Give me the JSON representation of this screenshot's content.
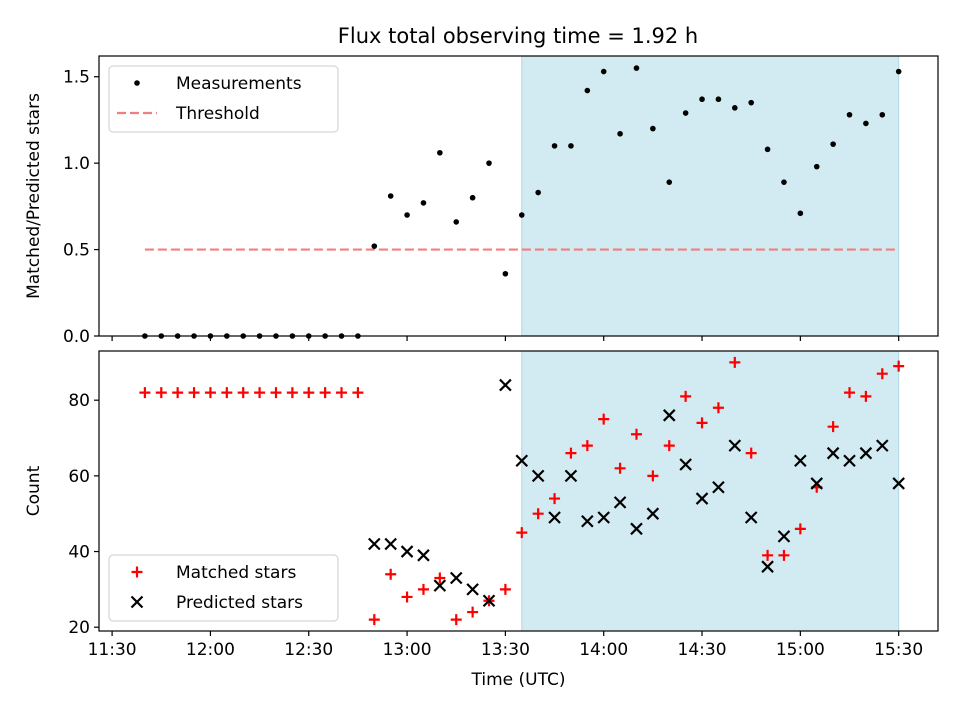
{
  "title": "Flux total observing time = 1.92 h",
  "colors": {
    "measurement": "#000000",
    "threshold": "#f08080",
    "span": "#add8e6",
    "matched": "#ff0000",
    "predicted": "#000000"
  },
  "chart_data": [
    {
      "type": "scatter",
      "ylabel": "Matched/Predicted stars",
      "ylim": [
        0,
        1.62
      ],
      "yticks": [
        0.0,
        0.5,
        1.0,
        1.5
      ],
      "ytick_labels": [
        "0.0",
        "0.5",
        "1.0",
        "1.5"
      ],
      "legend_placement": "upper-left",
      "shaded_span": [
        "13:35",
        "15:30"
      ],
      "threshold": {
        "name": "Threshold",
        "y": 0.5,
        "x_range": [
          "11:40",
          "15:30"
        ],
        "style": "dashed"
      },
      "series": [
        {
          "name": "Measurements",
          "marker": "dot",
          "points": [
            [
              "11:40",
              0
            ],
            [
              "11:45",
              0
            ],
            [
              "11:50",
              0
            ],
            [
              "11:55",
              0
            ],
            [
              "12:00",
              0
            ],
            [
              "12:05",
              0
            ],
            [
              "12:10",
              0
            ],
            [
              "12:15",
              0
            ],
            [
              "12:20",
              0
            ],
            [
              "12:25",
              0
            ],
            [
              "12:30",
              0
            ],
            [
              "12:35",
              0
            ],
            [
              "12:40",
              0
            ],
            [
              "12:45",
              0
            ],
            [
              "12:50",
              0.52
            ],
            [
              "12:55",
              0.81
            ],
            [
              "13:00",
              0.7
            ],
            [
              "13:05",
              0.77
            ],
            [
              "13:10",
              1.06
            ],
            [
              "13:15",
              0.66
            ],
            [
              "13:20",
              0.8
            ],
            [
              "13:25",
              1.0
            ],
            [
              "13:30",
              0.36
            ],
            [
              "13:35",
              0.7
            ],
            [
              "13:40",
              0.83
            ],
            [
              "13:45",
              1.1
            ],
            [
              "13:50",
              1.1
            ],
            [
              "13:55",
              1.42
            ],
            [
              "14:00",
              1.53
            ],
            [
              "14:05",
              1.17
            ],
            [
              "14:10",
              1.55
            ],
            [
              "14:15",
              1.2
            ],
            [
              "14:20",
              0.89
            ],
            [
              "14:25",
              1.29
            ],
            [
              "14:30",
              1.37
            ],
            [
              "14:35",
              1.37
            ],
            [
              "14:40",
              1.32
            ],
            [
              "14:45",
              1.35
            ],
            [
              "14:50",
              1.08
            ],
            [
              "14:55",
              0.89
            ],
            [
              "15:00",
              0.71
            ],
            [
              "15:05",
              0.98
            ],
            [
              "15:10",
              1.11
            ],
            [
              "15:15",
              1.28
            ],
            [
              "15:20",
              1.23
            ],
            [
              "15:25",
              1.28
            ],
            [
              "15:30",
              1.53
            ]
          ]
        }
      ]
    },
    {
      "type": "scatter",
      "xlabel": "Time (UTC)",
      "ylabel": "Count",
      "ylim": [
        19,
        93
      ],
      "yticks": [
        20,
        40,
        60,
        80
      ],
      "ytick_labels": [
        "20",
        "40",
        "60",
        "80"
      ],
      "xlim": [
        "11:26",
        "15:42"
      ],
      "xticks": [
        "11:30",
        "12:00",
        "12:30",
        "13:00",
        "13:30",
        "14:00",
        "14:30",
        "15:00",
        "15:30"
      ],
      "legend_placement": "lower-left",
      "shaded_span": [
        "13:35",
        "15:30"
      ],
      "series": [
        {
          "name": "Matched stars",
          "marker": "plus",
          "points": [
            [
              "11:40",
              82
            ],
            [
              "11:45",
              82
            ],
            [
              "11:50",
              82
            ],
            [
              "11:55",
              82
            ],
            [
              "12:00",
              82
            ],
            [
              "12:05",
              82
            ],
            [
              "12:10",
              82
            ],
            [
              "12:15",
              82
            ],
            [
              "12:20",
              82
            ],
            [
              "12:25",
              82
            ],
            [
              "12:30",
              82
            ],
            [
              "12:35",
              82
            ],
            [
              "12:40",
              82
            ],
            [
              "12:45",
              82
            ],
            [
              "12:50",
              22
            ],
            [
              "12:55",
              34
            ],
            [
              "13:00",
              28
            ],
            [
              "13:05",
              30
            ],
            [
              "13:10",
              33
            ],
            [
              "13:15",
              22
            ],
            [
              "13:20",
              24
            ],
            [
              "13:25",
              27
            ],
            [
              "13:30",
              30
            ],
            [
              "13:35",
              45
            ],
            [
              "13:40",
              50
            ],
            [
              "13:45",
              54
            ],
            [
              "13:50",
              66
            ],
            [
              "13:55",
              68
            ],
            [
              "14:00",
              75
            ],
            [
              "14:05",
              62
            ],
            [
              "14:10",
              71
            ],
            [
              "14:15",
              60
            ],
            [
              "14:20",
              68
            ],
            [
              "14:25",
              81
            ],
            [
              "14:30",
              74
            ],
            [
              "14:35",
              78
            ],
            [
              "14:40",
              90
            ],
            [
              "14:45",
              66
            ],
            [
              "14:50",
              39
            ],
            [
              "14:55",
              39
            ],
            [
              "15:00",
              46
            ],
            [
              "15:05",
              57
            ],
            [
              "15:10",
              73
            ],
            [
              "15:15",
              82
            ],
            [
              "15:20",
              81
            ],
            [
              "15:25",
              87
            ],
            [
              "15:30",
              89
            ]
          ]
        },
        {
          "name": "Predicted stars",
          "marker": "x",
          "points": [
            [
              "12:50",
              42
            ],
            [
              "12:55",
              42
            ],
            [
              "13:00",
              40
            ],
            [
              "13:05",
              39
            ],
            [
              "13:10",
              31
            ],
            [
              "13:15",
              33
            ],
            [
              "13:20",
              30
            ],
            [
              "13:25",
              27
            ],
            [
              "13:30",
              84
            ],
            [
              "13:35",
              64
            ],
            [
              "13:40",
              60
            ],
            [
              "13:45",
              49
            ],
            [
              "13:50",
              60
            ],
            [
              "13:55",
              48
            ],
            [
              "14:00",
              49
            ],
            [
              "14:05",
              53
            ],
            [
              "14:10",
              46
            ],
            [
              "14:15",
              50
            ],
            [
              "14:20",
              76
            ],
            [
              "14:25",
              63
            ],
            [
              "14:30",
              54
            ],
            [
              "14:35",
              57
            ],
            [
              "14:40",
              68
            ],
            [
              "14:45",
              49
            ],
            [
              "14:50",
              36
            ],
            [
              "14:55",
              44
            ],
            [
              "15:00",
              64
            ],
            [
              "15:05",
              58
            ],
            [
              "15:10",
              66
            ],
            [
              "15:15",
              64
            ],
            [
              "15:20",
              66
            ],
            [
              "15:25",
              68
            ],
            [
              "15:30",
              58
            ]
          ]
        }
      ]
    }
  ]
}
